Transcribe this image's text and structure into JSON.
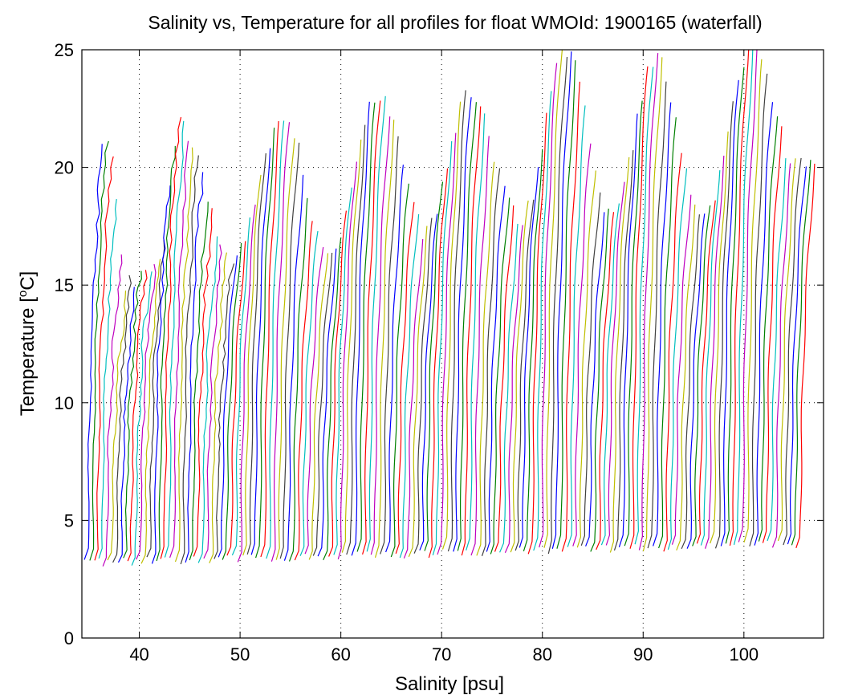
{
  "chart_data": {
    "type": "line",
    "title": "Salinity vs, Temperature for all profiles for float WMOId: 1900165 (waterfall)",
    "xlabel": "Salinity [psu]",
    "ylabel_main": "Temperature [",
    "ylabel_sup": "o",
    "ylabel_end": "C]",
    "xlim": [
      34.3,
      107.9
    ],
    "ylim": [
      0,
      25
    ],
    "x_ticks": [
      40,
      50,
      60,
      70,
      80,
      90,
      100
    ],
    "y_ticks": [
      0,
      5,
      10,
      15,
      20,
      25
    ],
    "grid": true,
    "waterfall": {
      "profile_count": 150,
      "first_profile_base_salinity": 34.9,
      "last_profile_base_salinity": 105.6,
      "offset_per_profile": 0.475,
      "bottom_temperature_range": [
        3.2,
        4.0
      ]
    },
    "surface_temperature_peaks": [
      {
        "salinity": 37,
        "temperature": 21
      },
      {
        "salinity": 44,
        "temperature": 21.8
      },
      {
        "salinity": 54.5,
        "temperature": 22.2
      },
      {
        "salinity": 64,
        "temperature": 23.2
      },
      {
        "salinity": 73,
        "temperature": 23.1
      },
      {
        "salinity": 82.5,
        "temperature": 25.0
      },
      {
        "salinity": 91.5,
        "temperature": 24.6
      },
      {
        "salinity": 101,
        "temperature": 25.0
      }
    ],
    "surface_temperature_troughs": [
      {
        "salinity": 39,
        "temperature": 15.0
      },
      {
        "salinity": 42,
        "temperature": 15.6
      },
      {
        "salinity": 49.5,
        "temperature": 16.1
      },
      {
        "salinity": 59,
        "temperature": 16.2
      },
      {
        "salinity": 68.5,
        "temperature": 17.3
      },
      {
        "salinity": 78,
        "temperature": 17.8
      },
      {
        "salinity": 87,
        "temperature": 18.0
      },
      {
        "salinity": 96,
        "temperature": 17.8
      },
      {
        "salinity": 105.5,
        "temperature": 20.0
      }
    ],
    "series_colors": [
      "#0000ff",
      "#008000",
      "#ff0000",
      "#00bfbf",
      "#bf00bf",
      "#bfbf00",
      "#404040"
    ]
  }
}
